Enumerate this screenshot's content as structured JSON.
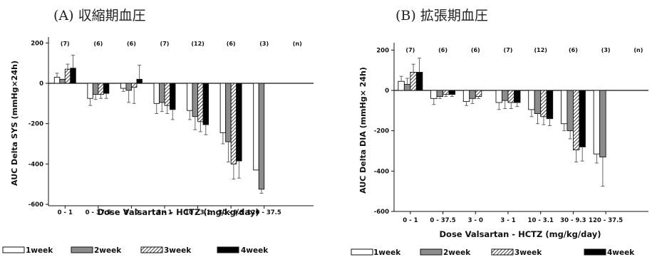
{
  "chart_data": [
    {
      "type": "bar",
      "title": "(A) 収縮期血圧",
      "xlabel": "Dose Valsartan - HCTZ (mg/kg/day)",
      "ylabel": "AUC Delta SYS (mmHg×24h)",
      "ylim": [
        -600,
        250
      ],
      "yticks": [
        200,
        0,
        -200,
        -400,
        -600
      ],
      "categories": [
        "0 - 1",
        "0 - 37.5",
        "3 - 0",
        "3 - 1",
        "10 - 3.1",
        "30 - 9.3",
        "120 - 37.5"
      ],
      "n_labels": [
        "(7)",
        "(6)",
        "(6)",
        "(7)",
        "(12)",
        "(6)",
        "(3)",
        "(n)"
      ],
      "series": [
        {
          "name": "1week",
          "values": [
            30,
            -75,
            -25,
            -100,
            -135,
            -245,
            -430
          ],
          "err_low": [
            30,
            -110,
            -40,
            -150,
            -180,
            -300,
            -430
          ],
          "err_high": [
            50,
            -75,
            -25,
            -100,
            -135,
            -245,
            -430
          ]
        },
        {
          "name": "2week",
          "values": [
            20,
            -55,
            -35,
            -95,
            -165,
            -290,
            -525
          ],
          "err_low": [
            20,
            -80,
            -95,
            -140,
            -230,
            -390,
            -545
          ],
          "err_high": [
            20,
            -55,
            -35,
            -95,
            -165,
            -290,
            -525
          ]
        },
        {
          "name": "3week",
          "values": [
            70,
            -55,
            -20,
            -110,
            -190,
            -400,
            null
          ],
          "err_low": [
            70,
            -75,
            -100,
            -150,
            -240,
            -475,
            null
          ],
          "err_high": [
            95,
            -55,
            -20,
            -110,
            -190,
            -400,
            null
          ]
        },
        {
          "name": "4week",
          "values": [
            75,
            -50,
            20,
            -130,
            -205,
            -385,
            null
          ],
          "err_low": [
            75,
            -75,
            20,
            -180,
            -255,
            -470,
            null
          ],
          "err_high": [
            140,
            -50,
            90,
            -130,
            -205,
            -385,
            null
          ]
        }
      ]
    },
    {
      "type": "bar",
      "title": "(B) 拡張期血圧",
      "xlabel": "Dose Valsartan - HCTZ (mg/kg/day)",
      "ylabel": "AUC Delta DIA (mmHg× 24h)",
      "ylim": [
        -600,
        250
      ],
      "yticks": [
        200,
        0,
        -200,
        -400,
        -600
      ],
      "categories": [
        "0 - 1",
        "0 - 37.5",
        "3 - 0",
        "3 - 1",
        "10 - 3.1",
        "30 - 9.3",
        "120 - 37.5"
      ],
      "n_labels": [
        "(7)",
        "(6)",
        "(6)",
        "(7)",
        "(12)",
        "(6)",
        "(3)",
        "(n)"
      ],
      "series": [
        {
          "name": "1week",
          "values": [
            45,
            -40,
            -55,
            -60,
            -95,
            -165,
            -315
          ],
          "err_low": [
            45,
            -70,
            -75,
            -95,
            -130,
            -200,
            -360
          ],
          "err_high": [
            70,
            -40,
            -55,
            -60,
            -95,
            -165,
            -315
          ]
        },
        {
          "name": "2week",
          "values": [
            30,
            -30,
            -40,
            -50,
            -115,
            -200,
            -330
          ],
          "err_low": [
            30,
            -40,
            -65,
            -90,
            -165,
            -240,
            -475
          ],
          "err_high": [
            60,
            -30,
            -40,
            -50,
            -115,
            -200,
            -330
          ]
        },
        {
          "name": "3week",
          "values": [
            90,
            -20,
            -30,
            -60,
            -130,
            -295,
            null
          ],
          "err_low": [
            90,
            -30,
            -40,
            -90,
            -170,
            -355,
            null
          ],
          "err_high": [
            130,
            -20,
            -30,
            -60,
            -130,
            -295,
            null
          ]
        },
        {
          "name": "4week",
          "values": [
            90,
            -20,
            null,
            -60,
            -140,
            -280,
            null
          ],
          "err_low": [
            90,
            -30,
            null,
            -80,
            -175,
            -350,
            null
          ],
          "err_high": [
            160,
            -20,
            null,
            -60,
            -140,
            -280,
            null
          ]
        }
      ]
    }
  ],
  "legend": [
    "1week",
    "2week",
    "3week",
    "4week"
  ]
}
